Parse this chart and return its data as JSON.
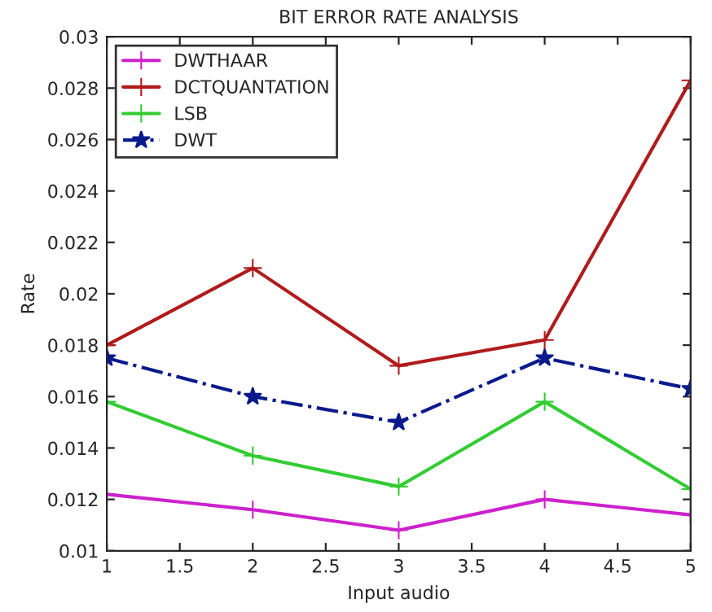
{
  "chart_data": {
    "type": "line",
    "title": "BIT ERROR RATE ANALYSIS",
    "xlabel": "Input audio",
    "ylabel": "Rate",
    "x": [
      1,
      2,
      3,
      4,
      5
    ],
    "series": [
      {
        "name": "DWTHAAR",
        "color": "#cc22cc",
        "marker": "cross",
        "line_style": "solid",
        "values": [
          0.0122,
          0.0116,
          0.0108,
          0.012,
          0.0114
        ]
      },
      {
        "name": "DCTQUANTATION",
        "color": "#b01c1c",
        "marker": "cross",
        "line_style": "solid",
        "values": [
          0.018,
          0.021,
          0.0172,
          0.0182,
          0.0283
        ]
      },
      {
        "name": "LSB",
        "color": "#33cc33",
        "marker": "cross",
        "line_style": "solid",
        "values": [
          0.0158,
          0.0137,
          0.0125,
          0.0158,
          0.0124
        ]
      },
      {
        "name": "DWT",
        "color": "#0a1a8c",
        "marker": "star",
        "line_style": "dashdot",
        "values": [
          0.0175,
          0.016,
          0.015,
          0.0175,
          0.0163
        ]
      }
    ],
    "xlim": [
      1,
      5
    ],
    "xticks": [
      1,
      1.5,
      2,
      2.5,
      3,
      3.5,
      4,
      4.5,
      5
    ],
    "ylim": [
      0.01,
      0.03
    ],
    "yticks": [
      0.01,
      0.012,
      0.014,
      0.016,
      0.018,
      0.02,
      0.022,
      0.024,
      0.026,
      0.028,
      0.03
    ],
    "grid": false,
    "legend": "top left"
  }
}
